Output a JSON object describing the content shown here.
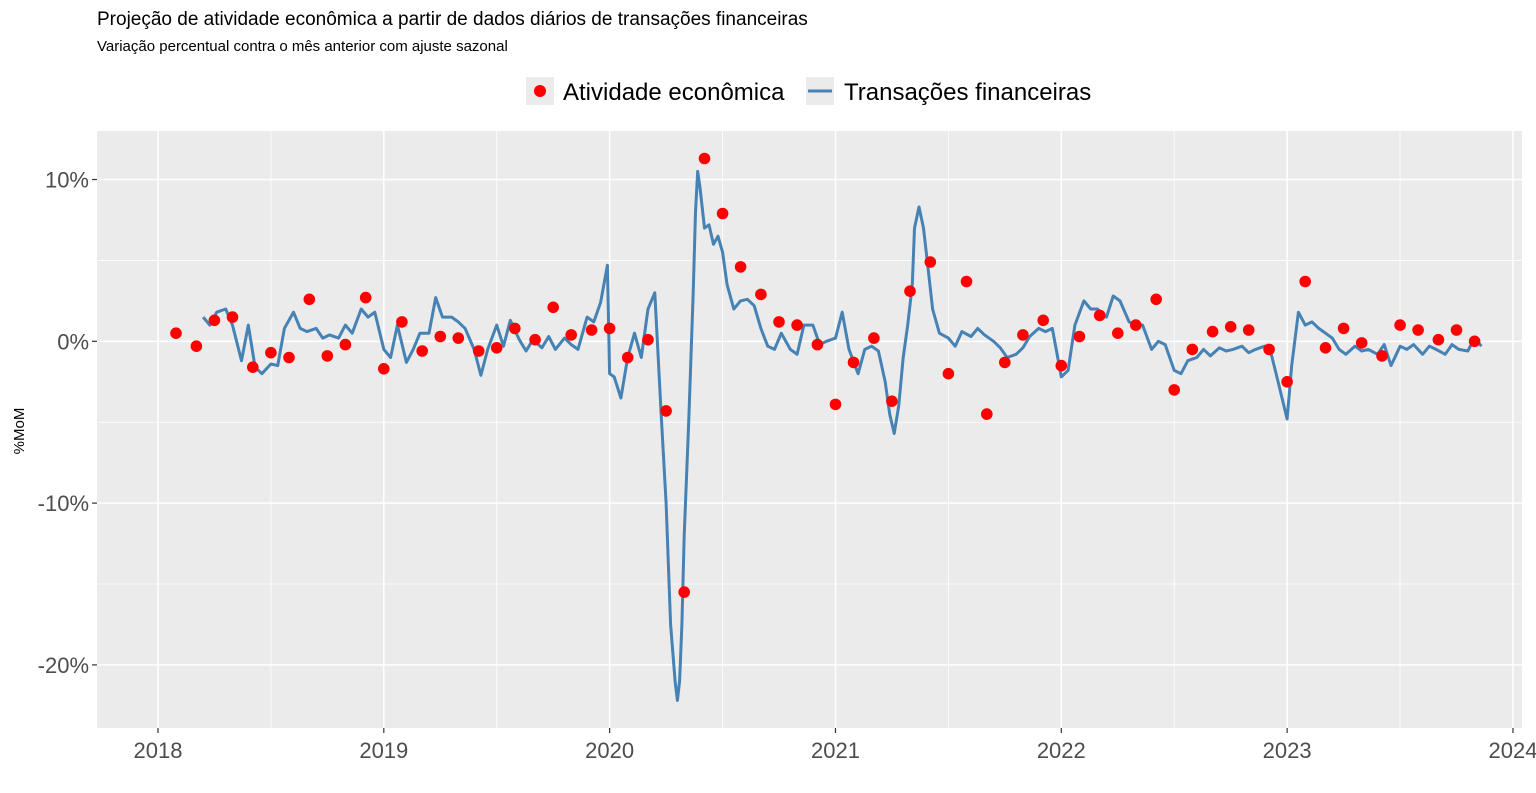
{
  "chart_data": {
    "type": "line+scatter",
    "title": "Projeção de atividade econômica a partir de dados diários de transações financeiras",
    "subtitle": "Variação percentual contra o mês anterior com ajuste sazonal",
    "ylabel": "%MoM",
    "xlabel": "",
    "xlim": [
      2017.73,
      2024.04
    ],
    "ylim": [
      -23.9,
      13.0
    ],
    "x_ticks": [
      {
        "value": 2018,
        "label": "2018"
      },
      {
        "value": 2019,
        "label": "2019"
      },
      {
        "value": 2020,
        "label": "2020"
      },
      {
        "value": 2021,
        "label": "2021"
      },
      {
        "value": 2022,
        "label": "2022"
      },
      {
        "value": 2023,
        "label": "2023"
      },
      {
        "value": 2024,
        "label": "2024"
      }
    ],
    "y_ticks": [
      {
        "value": 10,
        "label": "10%"
      },
      {
        "value": 0,
        "label": "0%"
      },
      {
        "value": -10,
        "label": "-10%"
      },
      {
        "value": -20,
        "label": "-20%"
      }
    ],
    "legend": {
      "position": "top",
      "items": [
        {
          "label": "Atividade econômica",
          "kind": "point",
          "color": "#ff0000"
        },
        {
          "label": "Transações financeiras",
          "kind": "line",
          "color": "#4682b4"
        }
      ]
    },
    "colors": {
      "panel": "#ebebeb",
      "grid": "#ffffff",
      "points": "#ff0000",
      "line": "#4682b4"
    },
    "series": [
      {
        "name": "Atividade econômica",
        "kind": "points",
        "x": [
          2018.08,
          2018.17,
          2018.25,
          2018.33,
          2018.42,
          2018.5,
          2018.58,
          2018.67,
          2018.75,
          2018.83,
          2018.92,
          2019.0,
          2019.08,
          2019.17,
          2019.25,
          2019.33,
          2019.42,
          2019.5,
          2019.58,
          2019.67,
          2019.75,
          2019.83,
          2019.92,
          2020.0,
          2020.08,
          2020.17,
          2020.25,
          2020.33,
          2020.42,
          2020.5,
          2020.58,
          2020.67,
          2020.75,
          2020.83,
          2020.92,
          2021.0,
          2021.08,
          2021.17,
          2021.25,
          2021.33,
          2021.42,
          2021.5,
          2021.58,
          2021.67,
          2021.75,
          2021.83,
          2021.92,
          2022.0,
          2022.08,
          2022.17,
          2022.25,
          2022.33,
          2022.42,
          2022.5,
          2022.58,
          2022.67,
          2022.75,
          2022.83,
          2022.92,
          2023.0,
          2023.08,
          2023.17,
          2023.25,
          2023.33,
          2023.42,
          2023.5,
          2023.58,
          2023.67,
          2023.75,
          2023.83
        ],
        "y": [
          0.5,
          -0.3,
          1.3,
          1.5,
          -1.6,
          -0.7,
          -1.0,
          2.6,
          -0.9,
          -0.2,
          2.7,
          -1.7,
          1.2,
          -0.6,
          0.3,
          0.2,
          -0.6,
          -0.4,
          0.8,
          0.1,
          2.1,
          0.4,
          0.7,
          0.8,
          -1.0,
          0.1,
          -4.3,
          -15.5,
          11.3,
          7.9,
          4.6,
          2.9,
          1.2,
          1.0,
          -0.2,
          -3.9,
          -1.3,
          0.2,
          -3.7,
          3.1,
          4.9,
          -2.0,
          3.7,
          -4.5,
          -1.3,
          0.4,
          1.3,
          -1.5,
          0.3,
          1.6,
          0.5,
          1.0,
          2.6,
          -3.0,
          -0.5,
          0.6,
          0.9,
          0.7,
          -0.5,
          -2.5,
          3.7,
          -0.4,
          0.8,
          -0.1,
          -0.9,
          1.0,
          0.7,
          0.1,
          0.7,
          0.0
        ]
      },
      {
        "name": "Transações financeiras",
        "kind": "line",
        "x": [
          2018.2,
          2018.23,
          2018.26,
          2018.3,
          2018.33,
          2018.37,
          2018.4,
          2018.43,
          2018.46,
          2018.5,
          2018.53,
          2018.56,
          2018.6,
          2018.63,
          2018.66,
          2018.7,
          2018.73,
          2018.76,
          2018.8,
          2018.83,
          2018.86,
          2018.9,
          2018.93,
          2018.96,
          2019.0,
          2019.03,
          2019.06,
          2019.1,
          2019.13,
          2019.16,
          2019.2,
          2019.23,
          2019.26,
          2019.3,
          2019.33,
          2019.36,
          2019.4,
          2019.43,
          2019.46,
          2019.5,
          2019.53,
          2019.56,
          2019.6,
          2019.63,
          2019.66,
          2019.7,
          2019.73,
          2019.76,
          2019.8,
          2019.83,
          2019.86,
          2019.9,
          2019.93,
          2019.96,
          2019.99,
          2020.0,
          2020.02,
          2020.05,
          2020.08,
          2020.11,
          2020.14,
          2020.17,
          2020.2,
          2020.23,
          2020.25,
          2020.27,
          2020.29,
          2020.3,
          2020.31,
          2020.32,
          2020.33,
          2020.35,
          2020.37,
          2020.38,
          2020.39,
          2020.4,
          2020.42,
          2020.44,
          2020.46,
          2020.48,
          2020.5,
          2020.52,
          2020.55,
          2020.58,
          2020.61,
          2020.64,
          2020.67,
          2020.7,
          2020.73,
          2020.76,
          2020.8,
          2020.83,
          2020.86,
          2020.9,
          2020.93,
          2020.96,
          2021.0,
          2021.03,
          2021.06,
          2021.1,
          2021.13,
          2021.16,
          2021.19,
          2021.22,
          2021.24,
          2021.26,
          2021.28,
          2021.3,
          2021.32,
          2021.34,
          2021.35,
          2021.37,
          2021.39,
          2021.41,
          2021.43,
          2021.46,
          2021.5,
          2021.53,
          2021.56,
          2021.6,
          2021.63,
          2021.66,
          2021.7,
          2021.73,
          2021.76,
          2021.8,
          2021.83,
          2021.86,
          2021.9,
          2021.93,
          2021.96,
          2022.0,
          2022.03,
          2022.06,
          2022.1,
          2022.13,
          2022.16,
          2022.2,
          2022.23,
          2022.26,
          2022.3,
          2022.33,
          2022.36,
          2022.4,
          2022.43,
          2022.46,
          2022.5,
          2022.53,
          2022.56,
          2022.6,
          2022.63,
          2022.66,
          2022.7,
          2022.73,
          2022.76,
          2022.8,
          2022.83,
          2022.86,
          2022.9,
          2022.93,
          2022.96,
          2023.0,
          2023.02,
          2023.05,
          2023.08,
          2023.11,
          2023.14,
          2023.17,
          2023.2,
          2023.23,
          2023.26,
          2023.3,
          2023.33,
          2023.36,
          2023.4,
          2023.43,
          2023.46,
          2023.5,
          2023.53,
          2023.56,
          2023.6,
          2023.63,
          2023.66,
          2023.7,
          2023.73,
          2023.76,
          2023.8,
          2023.83,
          2023.86
        ],
        "y": [
          1.5,
          1.0,
          1.8,
          2.0,
          1.0,
          -1.2,
          1.0,
          -1.6,
          -2.0,
          -1.4,
          -1.5,
          0.8,
          1.8,
          0.8,
          0.6,
          0.8,
          0.2,
          0.4,
          0.2,
          1.0,
          0.5,
          2.0,
          1.5,
          1.8,
          -0.5,
          -1.0,
          1.0,
          -1.3,
          -0.5,
          0.5,
          0.5,
          2.7,
          1.5,
          1.5,
          1.2,
          0.8,
          -0.5,
          -2.1,
          -0.5,
          1.0,
          -0.3,
          1.3,
          0.1,
          -0.6,
          0.1,
          -0.4,
          0.3,
          -0.5,
          0.2,
          -0.2,
          -0.5,
          1.5,
          1.2,
          2.4,
          4.7,
          -2.0,
          -2.2,
          -3.5,
          -1.0,
          0.5,
          -1.0,
          2.0,
          3.0,
          -5.0,
          -10.0,
          -17.5,
          -21.0,
          -22.2,
          -21.0,
          -17.5,
          -12.0,
          -5.0,
          3.0,
          8.0,
          10.5,
          9.5,
          7.0,
          7.2,
          6.0,
          6.5,
          5.5,
          3.5,
          2.0,
          2.5,
          2.6,
          2.2,
          0.8,
          -0.3,
          -0.5,
          0.5,
          -0.5,
          -0.8,
          1.0,
          1.0,
          -0.2,
          0.0,
          0.2,
          1.8,
          -0.5,
          -2.0,
          -0.5,
          -0.3,
          -0.6,
          -2.5,
          -4.5,
          -5.7,
          -4.0,
          -1.0,
          1.0,
          3.5,
          7.0,
          8.3,
          7.0,
          4.5,
          2.0,
          0.5,
          0.2,
          -0.3,
          0.6,
          0.3,
          0.8,
          0.4,
          0.0,
          -0.4,
          -1.0,
          -0.8,
          -0.4,
          0.3,
          0.8,
          0.6,
          0.8,
          -2.2,
          -1.8,
          1.0,
          2.5,
          2.0,
          2.0,
          1.5,
          2.8,
          2.5,
          1.2,
          1.0,
          1.0,
          -0.5,
          0.0,
          -0.2,
          -1.8,
          -2.0,
          -1.2,
          -1.0,
          -0.5,
          -0.9,
          -0.4,
          -0.6,
          -0.5,
          -0.3,
          -0.7,
          -0.5,
          -0.3,
          -0.8,
          -2.5,
          -4.8,
          -1.5,
          1.8,
          1.0,
          1.2,
          0.8,
          0.5,
          0.2,
          -0.5,
          -0.8,
          -0.3,
          -0.6,
          -0.5,
          -0.8,
          -0.2,
          -1.5,
          -0.3,
          -0.5,
          -0.2,
          -0.8,
          -0.3,
          -0.5,
          -0.8,
          -0.2,
          -0.5,
          -0.6,
          0.2,
          -0.3
        ]
      }
    ]
  }
}
